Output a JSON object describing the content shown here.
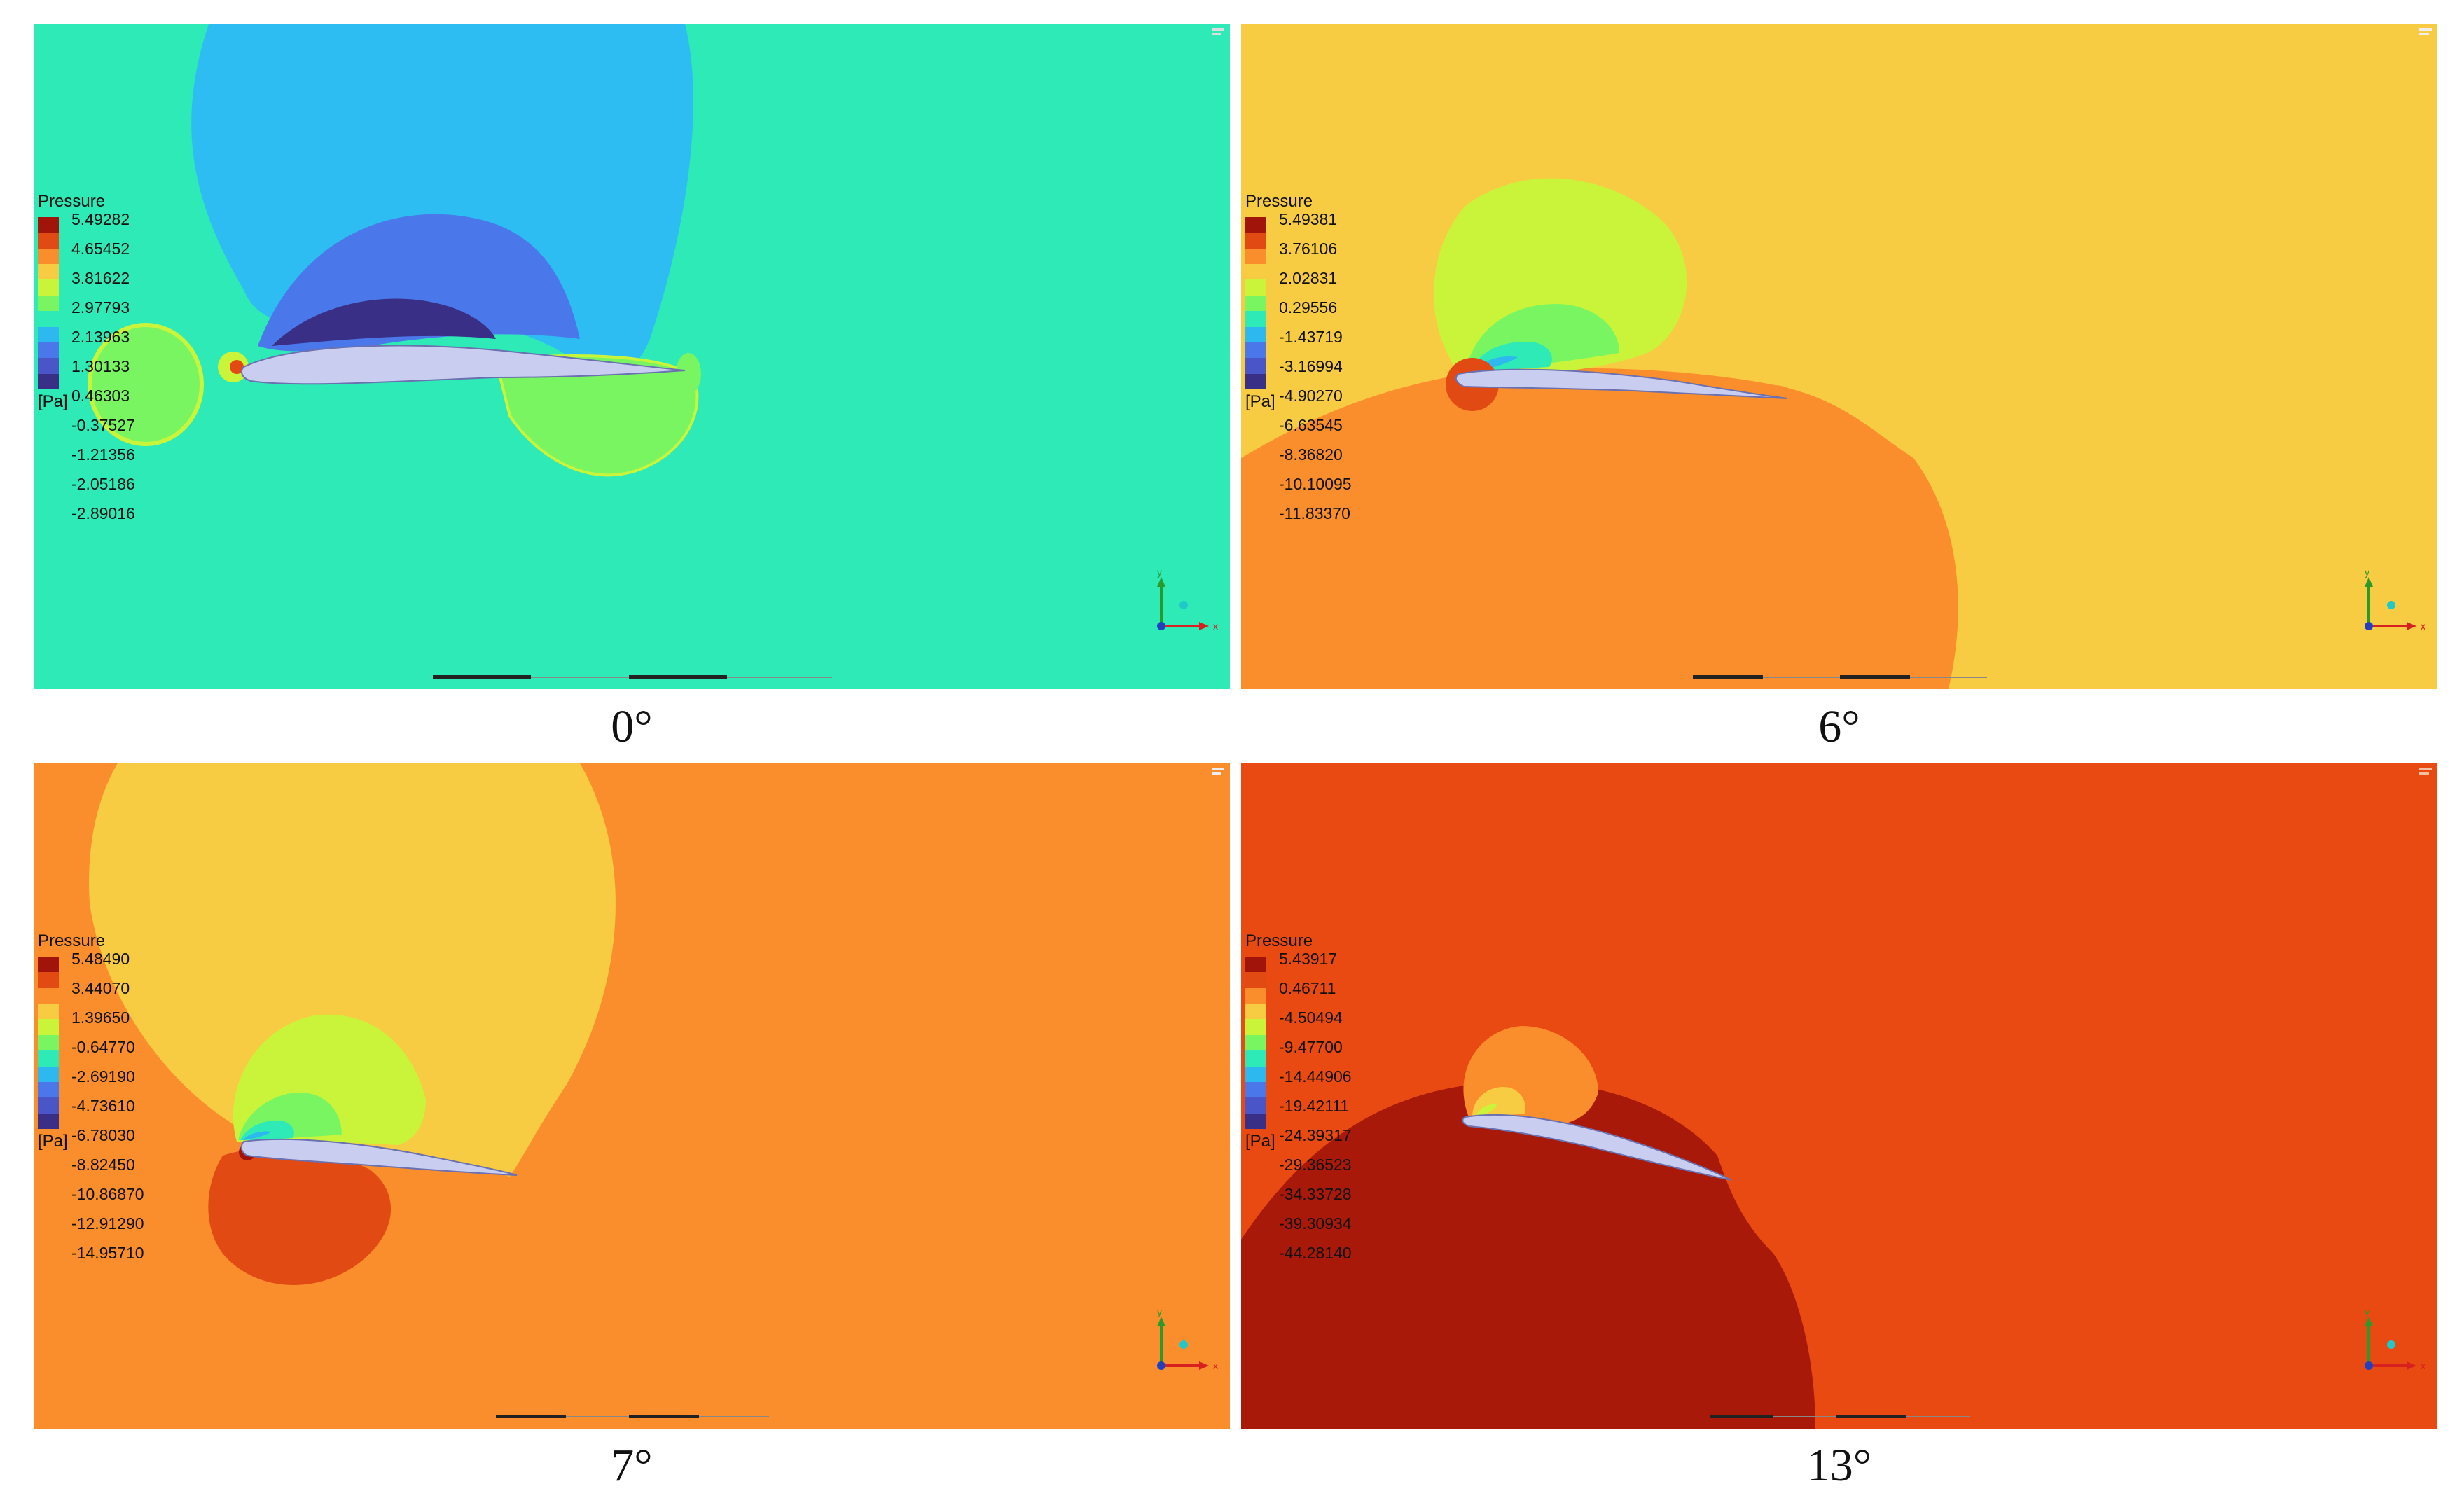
{
  "panels": [
    {
      "id": "p0",
      "caption": "0°",
      "background": "#2EEAB6",
      "legend": {
        "title": "Pressure",
        "unit": "[Pa]",
        "ticks": [
          "5.49282",
          "4.65452",
          "3.81622",
          "2.97793",
          "2.13963",
          "1.30133",
          "0.46303",
          "-0.37527",
          "-1.21356",
          "-2.05186",
          "-2.89016"
        ]
      }
    },
    {
      "id": "p6",
      "caption": "6°",
      "background": "#F8CC42",
      "legend": {
        "title": "Pressure",
        "unit": "[Pa]",
        "ticks": [
          "5.49381",
          "3.76106",
          "2.02831",
          "0.29556",
          "-1.43719",
          "-3.16994",
          "-4.90270",
          "-6.63545",
          "-8.36820",
          "-10.10095",
          "-11.83370"
        ]
      }
    },
    {
      "id": "p7",
      "caption": "7°",
      "background": "#FA8E2C",
      "legend": {
        "title": "Pressure",
        "unit": "[Pa]",
        "ticks": [
          "5.48490",
          "3.44070",
          "1.39650",
          "-0.64770",
          "-2.69190",
          "-4.73610",
          "-6.78030",
          "-8.82450",
          "-10.86870",
          "-12.91290",
          "-14.95710"
        ]
      }
    },
    {
      "id": "p13",
      "caption": "13°",
      "background": "#E84A12",
      "legend": {
        "title": "Pressure",
        "unit": "[Pa]",
        "ticks": [
          "5.43917",
          "0.46711",
          "-4.50494",
          "-9.47700",
          "-14.44906",
          "-19.42111",
          "-24.39317",
          "-29.36523",
          "-34.33728",
          "-39.30934",
          "-44.28140"
        ]
      }
    }
  ],
  "colormap": [
    "#A1140A",
    "#E24A14",
    "#FA8E2C",
    "#F8CC42",
    "#C9F43A",
    "#7AF562",
    "#2EEAB6",
    "#2EB8F0",
    "#4A78EA",
    "#4A56C8",
    "#3A2F86"
  ],
  "triad": {
    "x_label": "x",
    "y_label": "y"
  }
}
